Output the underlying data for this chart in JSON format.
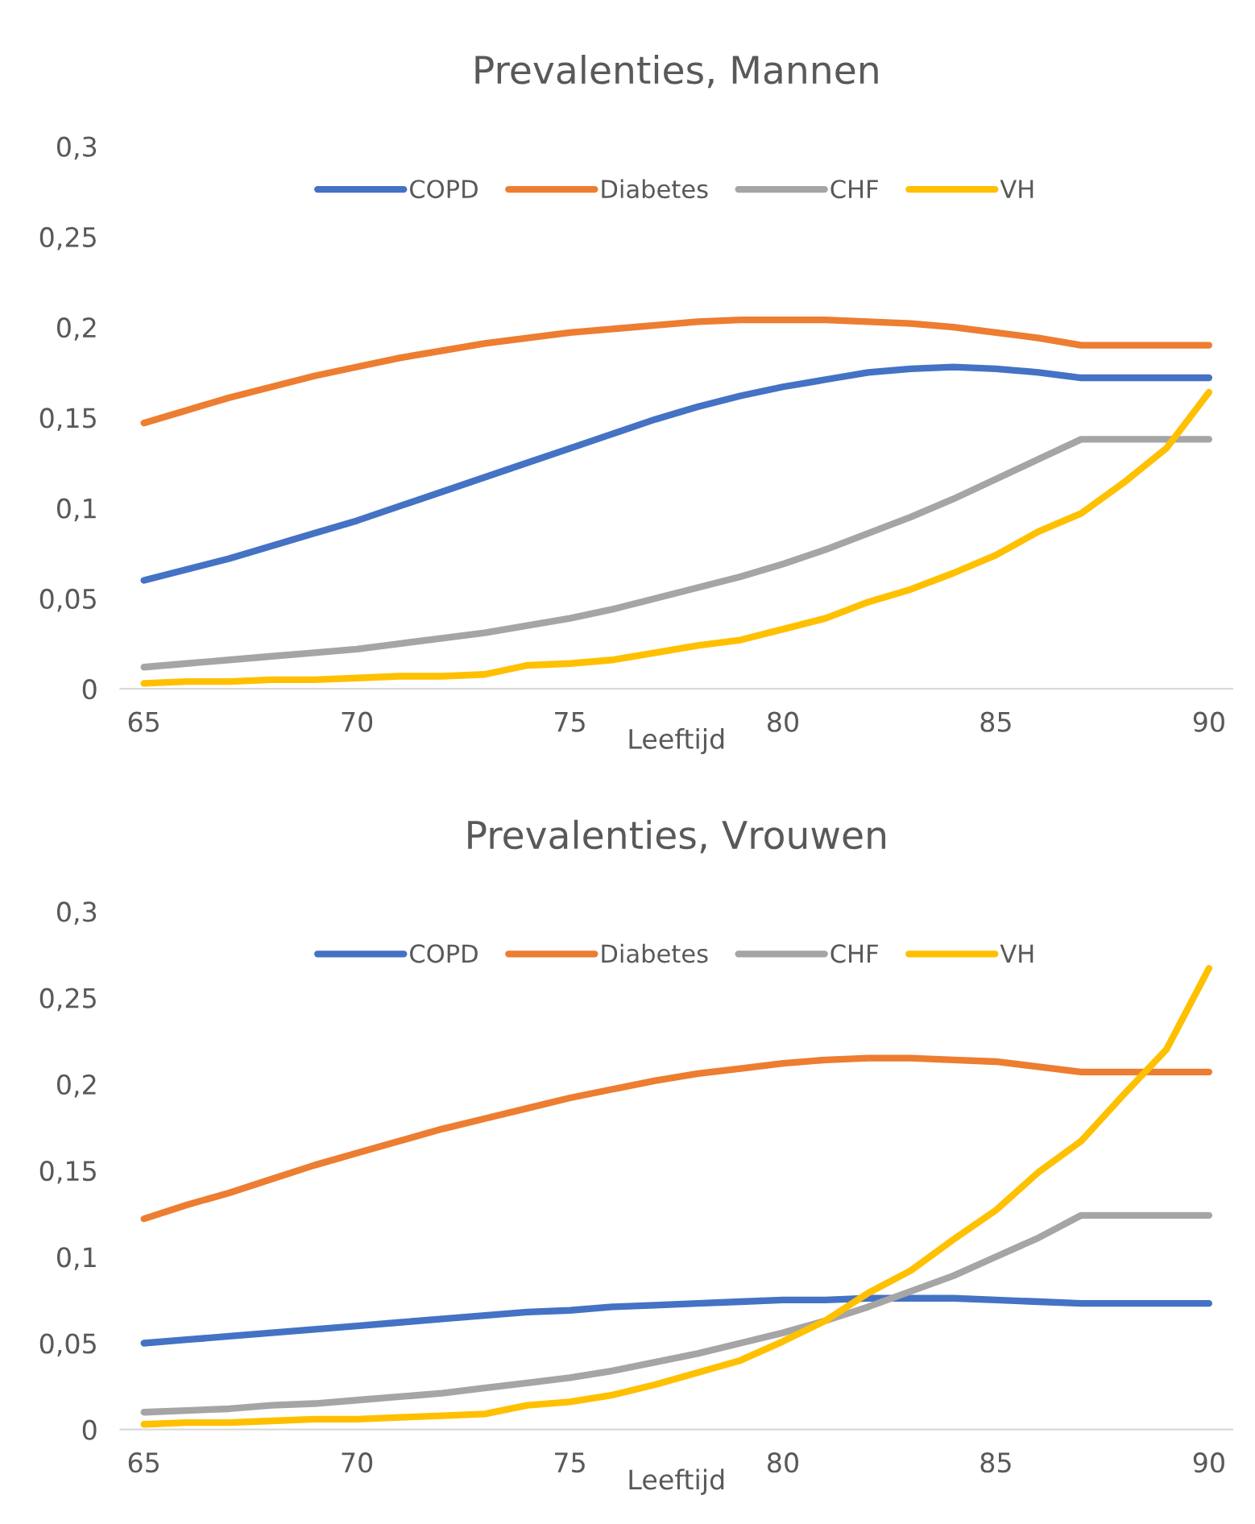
{
  "chart_data": [
    {
      "type": "line",
      "title": "Prevalenties, Mannen",
      "xlabel": "Leeftijd",
      "x": [
        65,
        66,
        67,
        68,
        69,
        70,
        71,
        72,
        73,
        74,
        75,
        76,
        77,
        78,
        79,
        80,
        81,
        82,
        83,
        84,
        85,
        86,
        87,
        88,
        89,
        90
      ],
      "xlim": [
        64.45,
        90.55
      ],
      "xticks": [
        65,
        70,
        75,
        80,
        85,
        90
      ],
      "ylim": [
        0,
        0.3
      ],
      "yticks": [
        {
          "value": 0,
          "label": "0"
        },
        {
          "value": 0.05,
          "label": "0,05"
        },
        {
          "value": 0.1,
          "label": "0,1"
        },
        {
          "value": 0.15,
          "label": "0,15"
        },
        {
          "value": 0.2,
          "label": "0,2"
        },
        {
          "value": 0.25,
          "label": "0,25"
        },
        {
          "value": 0.3,
          "label": "0,3"
        }
      ],
      "grid": false,
      "legend": "top",
      "marker": "none",
      "line_style": "solid",
      "series": [
        {
          "name": "COPD",
          "color": "#4472c4",
          "values": [
            0.06,
            0.066,
            0.072,
            0.079,
            0.086,
            0.093,
            0.101,
            0.109,
            0.117,
            0.125,
            0.133,
            0.141,
            0.149,
            0.156,
            0.162,
            0.167,
            0.171,
            0.175,
            0.177,
            0.178,
            0.177,
            0.175,
            0.172,
            0.172,
            0.172,
            0.172
          ]
        },
        {
          "name": "Diabetes",
          "color": "#ed7d31",
          "values": [
            0.147,
            0.154,
            0.161,
            0.167,
            0.173,
            0.178,
            0.183,
            0.187,
            0.191,
            0.194,
            0.197,
            0.199,
            0.201,
            0.203,
            0.204,
            0.204,
            0.204,
            0.203,
            0.202,
            0.2,
            0.197,
            0.194,
            0.19,
            0.19,
            0.19,
            0.19
          ]
        },
        {
          "name": "CHF",
          "color": "#a5a5a5",
          "values": [
            0.012,
            0.014,
            0.016,
            0.018,
            0.02,
            0.022,
            0.025,
            0.028,
            0.031,
            0.035,
            0.039,
            0.044,
            0.05,
            0.056,
            0.062,
            0.069,
            0.077,
            0.086,
            0.095,
            0.105,
            0.116,
            0.127,
            0.138,
            0.138,
            0.138,
            0.138
          ]
        },
        {
          "name": "VH",
          "color": "#ffc000",
          "values": [
            0.003,
            0.004,
            0.004,
            0.005,
            0.005,
            0.006,
            0.007,
            0.007,
            0.008,
            0.013,
            0.014,
            0.016,
            0.02,
            0.024,
            0.027,
            0.033,
            0.039,
            0.048,
            0.055,
            0.064,
            0.074,
            0.087,
            0.097,
            0.114,
            0.133,
            0.164
          ]
        }
      ]
    },
    {
      "type": "line",
      "title": "Prevalenties, Vrouwen",
      "xlabel": "Leeftijd",
      "x": [
        65,
        66,
        67,
        68,
        69,
        70,
        71,
        72,
        73,
        74,
        75,
        76,
        77,
        78,
        79,
        80,
        81,
        82,
        83,
        84,
        85,
        86,
        87,
        88,
        89,
        90
      ],
      "xlim": [
        64.45,
        90.55
      ],
      "xticks": [
        65,
        70,
        75,
        80,
        85,
        90
      ],
      "ylim": [
        0,
        0.3
      ],
      "yticks": [
        {
          "value": 0,
          "label": "0"
        },
        {
          "value": 0.05,
          "label": "0,05"
        },
        {
          "value": 0.1,
          "label": "0,1"
        },
        {
          "value": 0.15,
          "label": "0,15"
        },
        {
          "value": 0.2,
          "label": "0,2"
        },
        {
          "value": 0.25,
          "label": "0,25"
        },
        {
          "value": 0.3,
          "label": "0,3"
        }
      ],
      "grid": false,
      "legend": "top",
      "marker": "none",
      "line_style": "solid",
      "series": [
        {
          "name": "COPD",
          "color": "#4472c4",
          "values": [
            0.05,
            0.052,
            0.054,
            0.056,
            0.058,
            0.06,
            0.062,
            0.064,
            0.066,
            0.068,
            0.069,
            0.071,
            0.072,
            0.073,
            0.074,
            0.075,
            0.075,
            0.076,
            0.076,
            0.076,
            0.075,
            0.074,
            0.073,
            0.073,
            0.073,
            0.073
          ]
        },
        {
          "name": "Diabetes",
          "color": "#ed7d31",
          "values": [
            0.122,
            0.13,
            0.137,
            0.145,
            0.153,
            0.16,
            0.167,
            0.174,
            0.18,
            0.186,
            0.192,
            0.197,
            0.202,
            0.206,
            0.209,
            0.212,
            0.214,
            0.215,
            0.215,
            0.214,
            0.213,
            0.21,
            0.207,
            0.207,
            0.207,
            0.207
          ]
        },
        {
          "name": "CHF",
          "color": "#a5a5a5",
          "values": [
            0.01,
            0.011,
            0.012,
            0.014,
            0.015,
            0.017,
            0.019,
            0.021,
            0.024,
            0.027,
            0.03,
            0.034,
            0.039,
            0.044,
            0.05,
            0.056,
            0.063,
            0.071,
            0.08,
            0.089,
            0.1,
            0.111,
            0.124,
            0.124,
            0.124,
            0.124
          ]
        },
        {
          "name": "VH",
          "color": "#ffc000",
          "values": [
            0.003,
            0.004,
            0.004,
            0.005,
            0.006,
            0.006,
            0.007,
            0.008,
            0.009,
            0.014,
            0.016,
            0.02,
            0.026,
            0.033,
            0.04,
            0.051,
            0.063,
            0.079,
            0.092,
            0.11,
            0.127,
            0.149,
            0.167,
            0.194,
            0.22,
            0.267
          ]
        }
      ]
    }
  ]
}
